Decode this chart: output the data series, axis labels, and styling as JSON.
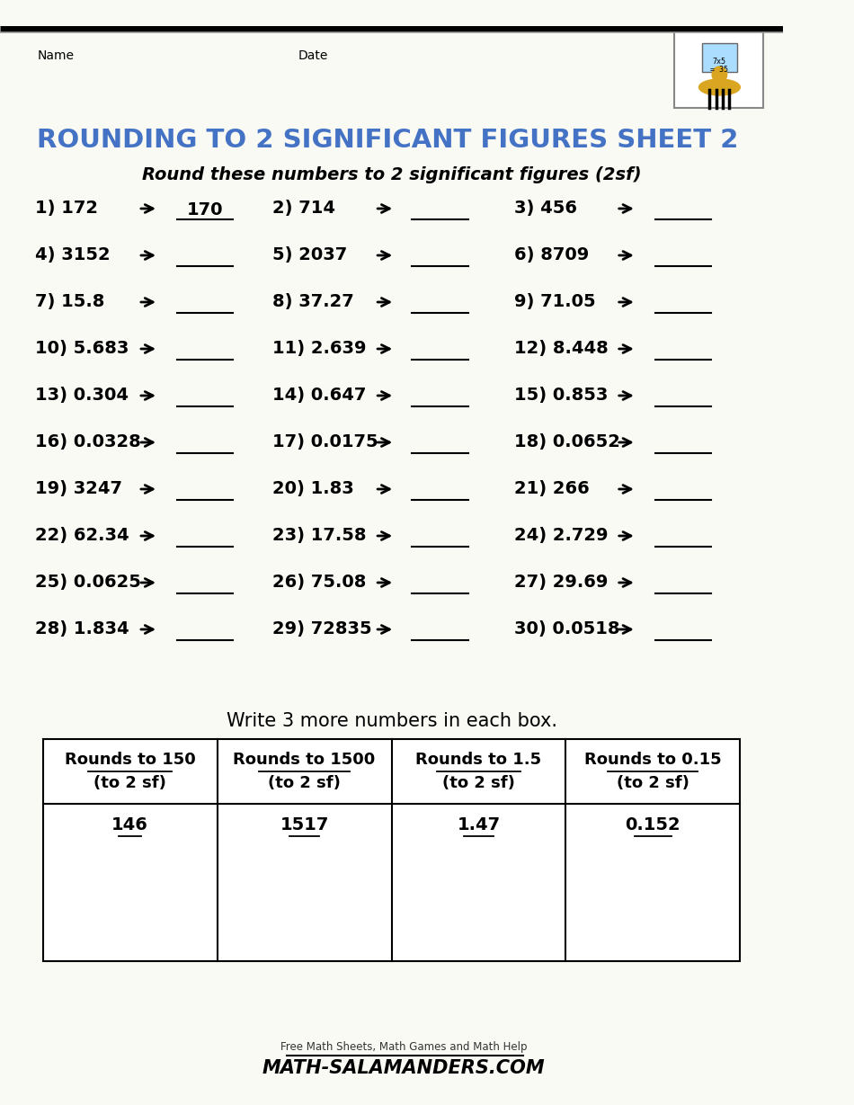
{
  "title": "ROUNDING TO 2 SIGNIFICANT FIGURES SHEET 2",
  "title_color": "#4472C4",
  "subtitle": "Round these numbers to 2 significant figures (2sf)",
  "name_label": "Name",
  "date_label": "Date",
  "bg_color": "#FAFAF5",
  "problems": [
    {
      "num": "1)",
      "val": "172",
      "answer": "170",
      "answered": true
    },
    {
      "num": "2)",
      "val": "714",
      "answer": "",
      "answered": false
    },
    {
      "num": "3)",
      "val": "456",
      "answer": "",
      "answered": false
    },
    {
      "num": "4)",
      "val": "3152",
      "answer": "",
      "answered": false
    },
    {
      "num": "5)",
      "val": "2037",
      "answer": "",
      "answered": false
    },
    {
      "num": "6)",
      "val": "8709",
      "answer": "",
      "answered": false
    },
    {
      "num": "7)",
      "val": "15.8",
      "answer": "",
      "answered": false
    },
    {
      "num": "8)",
      "val": "37.27",
      "answer": "",
      "answered": false
    },
    {
      "num": "9)",
      "val": "71.05",
      "answer": "",
      "answered": false
    },
    {
      "num": "10)",
      "val": "5.683",
      "answer": "",
      "answered": false
    },
    {
      "num": "11)",
      "val": "2.639",
      "answer": "",
      "answered": false
    },
    {
      "num": "12)",
      "val": "8.448",
      "answer": "",
      "answered": false
    },
    {
      "num": "13)",
      "val": "0.304",
      "answer": "",
      "answered": false
    },
    {
      "num": "14)",
      "val": "0.647",
      "answer": "",
      "answered": false
    },
    {
      "num": "15)",
      "val": "0.853",
      "answer": "",
      "answered": false
    },
    {
      "num": "16)",
      "val": "0.0328",
      "answer": "",
      "answered": false
    },
    {
      "num": "17)",
      "val": "0.0175",
      "answer": "",
      "answered": false
    },
    {
      "num": "18)",
      "val": "0.0652",
      "answer": "",
      "answered": false
    },
    {
      "num": "19)",
      "val": "3247",
      "answer": "",
      "answered": false
    },
    {
      "num": "20)",
      "val": "1.83",
      "answer": "",
      "answered": false
    },
    {
      "num": "21)",
      "val": "266",
      "answer": "",
      "answered": false
    },
    {
      "num": "22)",
      "val": "62.34",
      "answer": "",
      "answered": false
    },
    {
      "num": "23)",
      "val": "17.58",
      "answer": "",
      "answered": false
    },
    {
      "num": "24)",
      "val": "2.729",
      "answer": "",
      "answered": false
    },
    {
      "num": "25)",
      "val": "0.0625",
      "answer": "",
      "answered": false
    },
    {
      "num": "26)",
      "val": "75.08",
      "answer": "",
      "answered": false
    },
    {
      "num": "27)",
      "val": "29.69",
      "answer": "",
      "answered": false
    },
    {
      "num": "28)",
      "val": "1.834",
      "answer": "",
      "answered": false
    },
    {
      "num": "29)",
      "val": "72835",
      "answer": "",
      "answered": false
    },
    {
      "num": "30)",
      "val": "0.0518",
      "answer": "",
      "answered": false
    }
  ],
  "table_title": "Write 3 more numbers in each box.",
  "table_headers_line1": [
    "Rounds to 150",
    "Rounds to 1500",
    "Rounds to 1.5",
    "Rounds to 0.15"
  ],
  "table_headers_line2": [
    "(to 2 sf)",
    "(to 2 sf)",
    "(to 2 sf)",
    "(to 2 sf)"
  ],
  "table_examples": [
    "146",
    "1517",
    "1.47",
    "0.152"
  ],
  "footer_text1": "Free Math Sheets, Math Games and Math Help",
  "footer_text2": "ATH-SALAMANDERS.COM"
}
